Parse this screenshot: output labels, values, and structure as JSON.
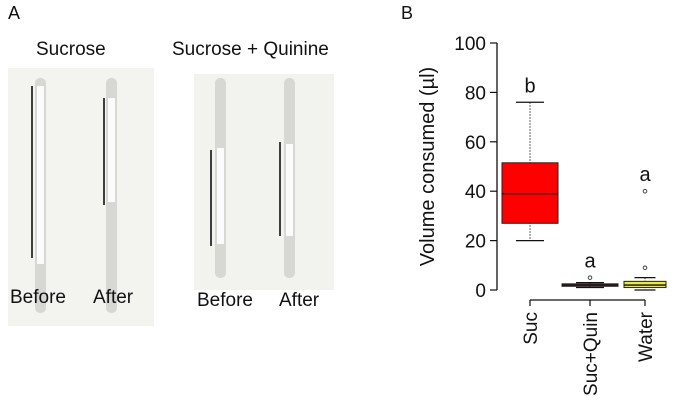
{
  "panel_a": {
    "letter": "A",
    "groups": [
      {
        "title": "Sucrose",
        "labels": [
          "Before",
          "After"
        ]
      },
      {
        "title": "Sucrose + Quinine",
        "labels": [
          "Before",
          "After"
        ]
      }
    ]
  },
  "panel_b": {
    "letter": "B"
  },
  "chart_data": {
    "type": "box",
    "title": "",
    "xlabel": "",
    "ylabel": "Volume consumed (µl)",
    "ylim": [
      0,
      100
    ],
    "yticks": [
      0,
      20,
      40,
      60,
      80,
      100
    ],
    "grid": false,
    "categories": [
      "Suc",
      "Suc+Quin",
      "Water"
    ],
    "boxes": [
      {
        "category": "Suc",
        "whisker_low": 20,
        "q1": 27,
        "median": 39,
        "q3": 51.5,
        "whisker_high": 76,
        "outliers": [],
        "color": "#ff0000",
        "letter": "b"
      },
      {
        "category": "Suc+Quin",
        "whisker_low": 1,
        "q1": 1.5,
        "median": 2,
        "q3": 2.5,
        "whisker_high": 3,
        "outliers": [
          5
        ],
        "color": "#c0392b",
        "letter": "a"
      },
      {
        "category": "Water",
        "whisker_low": 0,
        "q1": 1,
        "median": 2,
        "q3": 3.5,
        "whisker_high": 5,
        "outliers": [
          9,
          40
        ],
        "color": "#e8e84a",
        "letter": "a"
      }
    ]
  }
}
